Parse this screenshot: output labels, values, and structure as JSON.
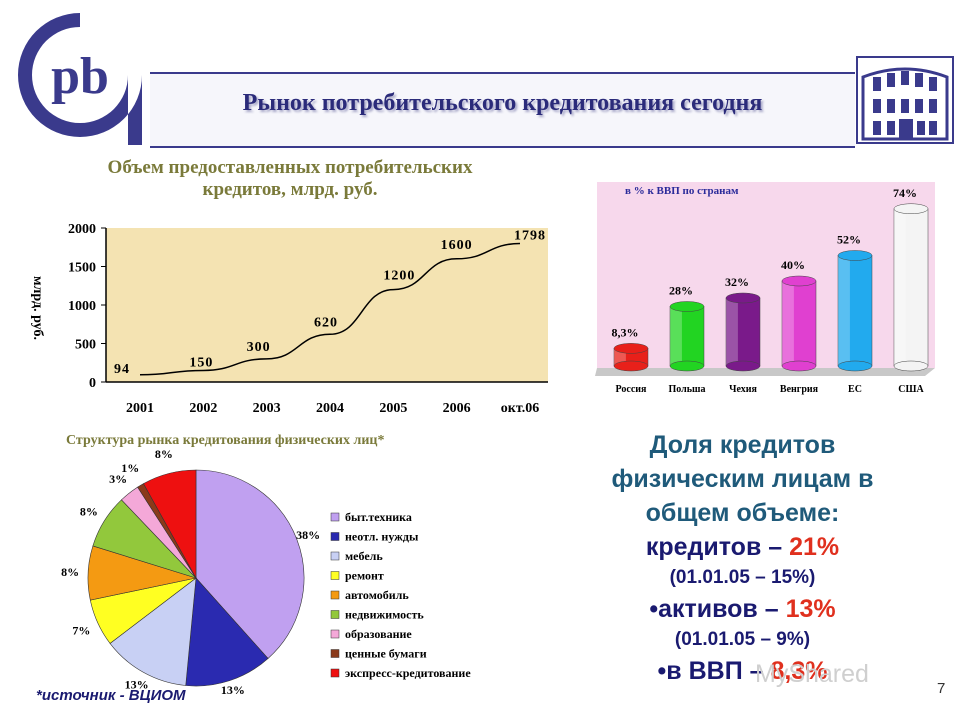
{
  "slide": {
    "title": "Рынок потребительского кредитования сегодня",
    "page_number": "7",
    "source_note": "*источник - ВЦИОМ",
    "watermark": "MyShared"
  },
  "logo": {
    "text": "pb",
    "icon": "bank-logo-icon"
  },
  "building": {
    "icon": "building-icon"
  },
  "share": {
    "title": "Доля кредитов физическим лицам в общем объеме:",
    "credits_label": "кредитов – ",
    "credits_value": "21%",
    "credits_prev": "(01.01.05 – 15%)",
    "assets_label": "•активов – ",
    "assets_value": "13%",
    "assets_prev": "(01.01.05 – 9%)",
    "gdp_label": "•в ВВП – ",
    "gdp_value": "8,3%"
  },
  "colors": {
    "navy": "#2b2b7a",
    "red": "#e0301e",
    "plot_bg": "#f4e3b2",
    "bar_bg": "#f7d8ec"
  },
  "chart_data": [
    {
      "type": "line",
      "title": "Объем предоставленных потребительских кредитов, млрд. руб.",
      "ylabel": "млрд. руб.",
      "xlabel": "",
      "categories": [
        "2001",
        "2002",
        "2003",
        "2004",
        "2005",
        "2006",
        "окт.06"
      ],
      "values": [
        94,
        150,
        300,
        620,
        1200,
        1600,
        1798
      ],
      "data_labels": [
        "94",
        "150",
        "300",
        "620",
        "1200",
        "1600",
        "1798"
      ],
      "yticks": [
        "0",
        "500",
        "1000",
        "1500",
        "2000"
      ],
      "ylim": [
        0,
        2000
      ],
      "grid": false
    },
    {
      "type": "bar",
      "title": "в %  к ВВП по странам",
      "categories": [
        "Россия",
        "Польша",
        "Чехия",
        "Венгрия",
        "ЕС",
        "США"
      ],
      "values": [
        8.3,
        28,
        32,
        40,
        52,
        74
      ],
      "data_labels": [
        "8,3%",
        "28%",
        "32%",
        "40%",
        "52%",
        "74%"
      ],
      "colors": [
        "#e8201a",
        "#22d422",
        "#7a1a8a",
        "#e040d0",
        "#22aaee",
        "#f4f4f4"
      ],
      "ylim": [
        0,
        80
      ]
    },
    {
      "type": "pie",
      "title": "Структура рынка кредитования физических лиц*",
      "labels": [
        "быт.техника",
        "неотл. нужды",
        "мебель",
        "ремонт",
        "автомобиль",
        "недвижимость",
        "образование",
        "ценные бумаги",
        "экспресс-кредитование"
      ],
      "values": [
        38,
        13,
        13,
        7,
        8,
        8,
        3,
        1,
        8
      ],
      "data_labels": [
        "38%",
        "13%",
        "13%",
        "7%",
        "8%",
        "8%",
        "3%",
        "1%",
        "8%"
      ],
      "colors": [
        "#c0a0f0",
        "#2a2ab0",
        "#c8d0f4",
        "#ffff22",
        "#f49a12",
        "#92c83c",
        "#f4a8d8",
        "#8a3a1a",
        "#ee1010"
      ],
      "legend": "right"
    }
  ]
}
